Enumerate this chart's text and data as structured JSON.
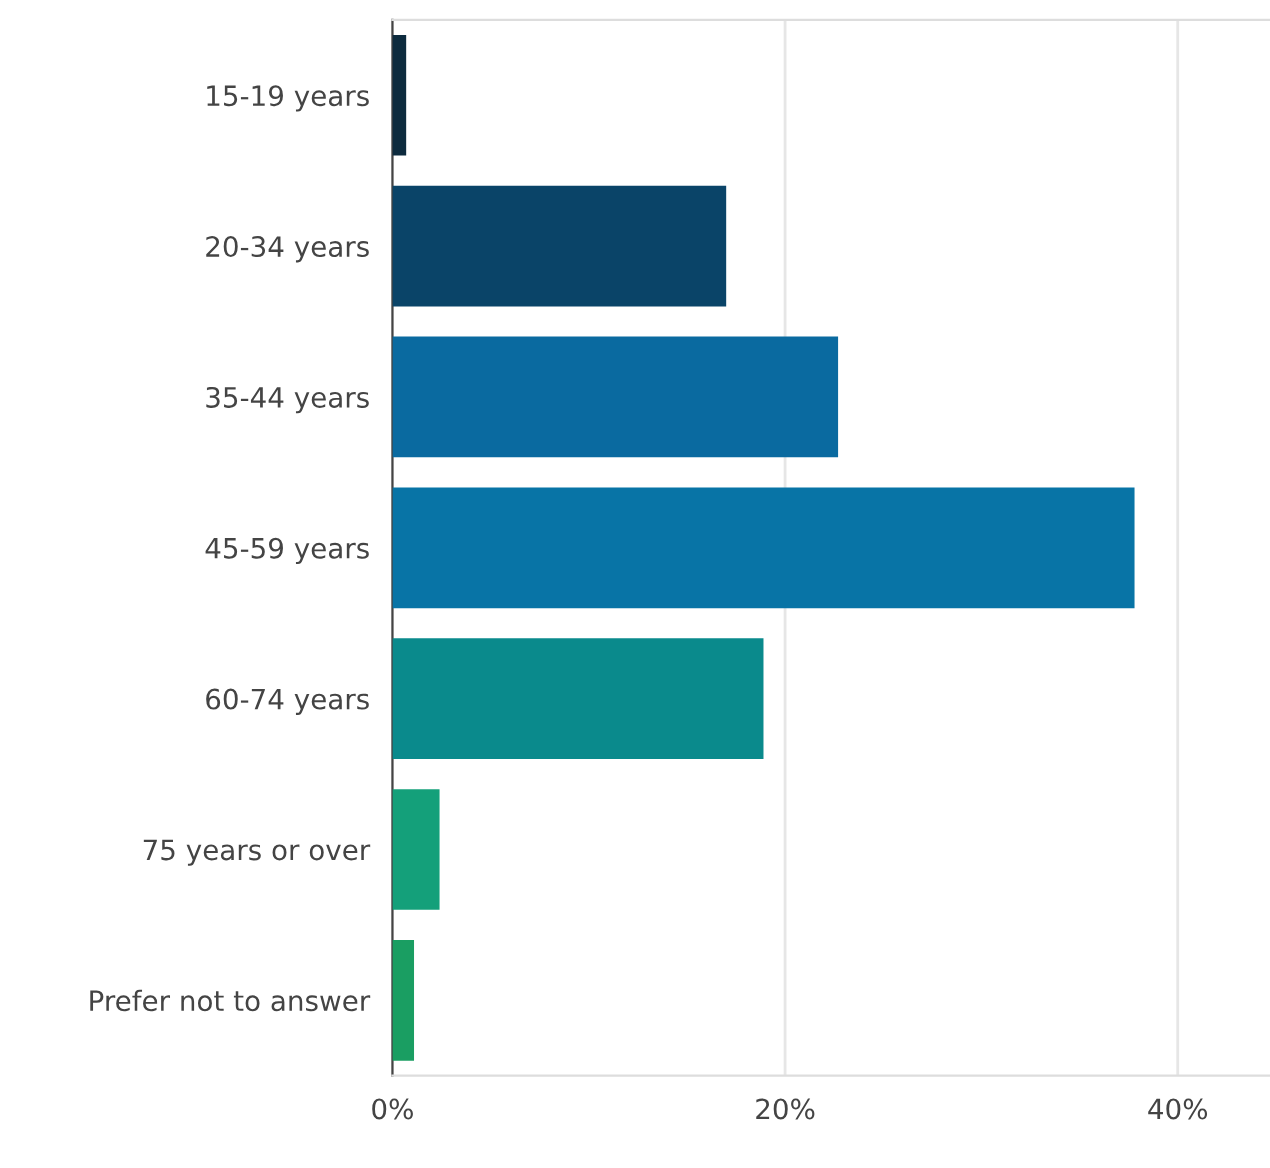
{
  "chart_data": {
    "type": "bar",
    "orientation": "horizontal",
    "categories": [
      "15-19 years",
      "20-34 years",
      "35-44 years",
      "45-59 years",
      "60-74 years",
      "75 years or over",
      "Prefer not to answer"
    ],
    "values": [
      0.7,
      17.0,
      22.7,
      37.8,
      18.9,
      2.4,
      1.1
    ],
    "colors": [
      "#0d2b3e",
      "#0a4468",
      "#0a6aa0",
      "#0874a6",
      "#0a8a8c",
      "#14a07a",
      "#1a9e62"
    ],
    "xlim": [
      0,
      44.7
    ],
    "xticks": [
      {
        "value": 0,
        "label": "0%"
      },
      {
        "value": 20,
        "label": "20%"
      },
      {
        "value": 40,
        "label": "40%"
      }
    ],
    "grid": "x"
  }
}
